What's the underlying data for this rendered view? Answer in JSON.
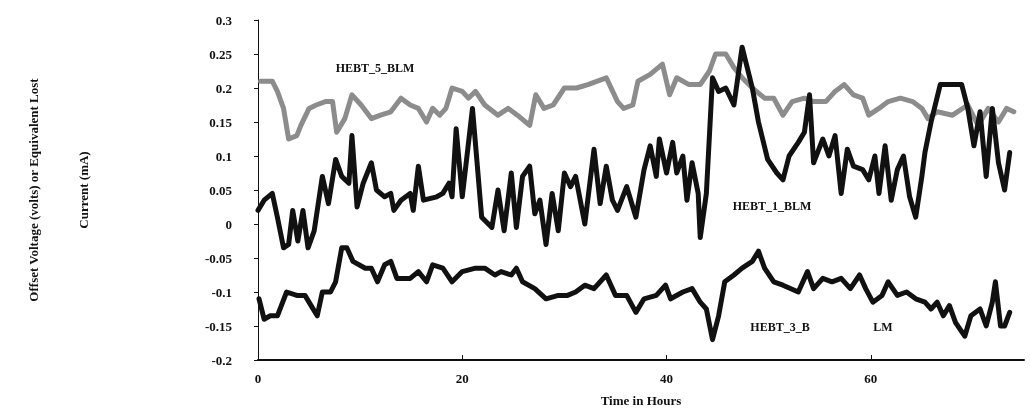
{
  "chart_data": {
    "type": "line",
    "xlabel": "Time in Hours",
    "ylabel": "Offset Voltage (volts) or Equivalent Lost Current (mA)",
    "xlim": [
      0,
      75
    ],
    "xticks": [
      0,
      20,
      40,
      60
    ],
    "ylim": [
      -0.2,
      0.3
    ],
    "yticks": [
      0.3,
      0.25,
      0.2,
      0.15,
      0.1,
      0.05,
      0,
      -0.05,
      -0.1,
      -0.15,
      -0.2
    ],
    "grid": false,
    "marker": "none",
    "line_style": "solid",
    "series": [
      {
        "color": "#8c8c8c",
        "x": [
          0.25,
          1.4,
          1.9,
          2.5,
          3.0,
          3.8,
          4.2,
          5.0,
          5.7,
          6.6,
          7.3,
          7.7,
          8.5,
          9.2,
          10.1,
          11.1,
          12.0,
          13.0,
          14.0,
          14.9,
          15.7,
          16.5,
          17.1,
          17.8,
          18.4,
          19.0,
          20.0,
          20.6,
          21.3,
          22.2,
          23.5,
          24.5,
          25.4,
          26.6,
          27.2,
          28.0,
          28.9,
          30.0,
          31.2,
          32.3,
          34.1,
          35.2,
          35.8,
          36.7,
          37.2,
          38.4,
          39.6,
          40.3,
          41.0,
          42.2,
          43.3,
          44.2,
          44.8,
          45.8,
          46.6,
          47.4,
          48.4,
          49.6,
          50.5,
          51.4,
          52.3,
          53.5,
          54.4,
          55.6,
          56.5,
          57.4,
          58.3,
          59.2,
          59.8,
          60.8,
          61.7,
          62.9,
          64.1,
          65.0,
          65.6,
          66.5,
          68.0,
          69.5,
          70.5,
          71.5,
          72.5,
          73.3,
          74.0
        ],
        "values": [
          0.21,
          0.21,
          0.195,
          0.17,
          0.125,
          0.13,
          0.145,
          0.17,
          0.175,
          0.18,
          0.18,
          0.135,
          0.155,
          0.19,
          0.175,
          0.155,
          0.16,
          0.165,
          0.185,
          0.175,
          0.17,
          0.15,
          0.17,
          0.16,
          0.17,
          0.2,
          0.195,
          0.185,
          0.195,
          0.175,
          0.16,
          0.17,
          0.16,
          0.145,
          0.19,
          0.17,
          0.175,
          0.2,
          0.2,
          0.205,
          0.215,
          0.18,
          0.17,
          0.175,
          0.21,
          0.22,
          0.235,
          0.19,
          0.215,
          0.205,
          0.205,
          0.225,
          0.25,
          0.25,
          0.23,
          0.215,
          0.2,
          0.185,
          0.185,
          0.16,
          0.18,
          0.185,
          0.18,
          0.18,
          0.195,
          0.205,
          0.19,
          0.185,
          0.16,
          0.17,
          0.18,
          0.185,
          0.18,
          0.17,
          0.155,
          0.165,
          0.16,
          0.175,
          0.145,
          0.17,
          0.15,
          0.17,
          0.165
        ]
      },
      {
        "color": "#111111",
        "x": [
          0,
          0.6,
          1.4,
          1.9,
          2.5,
          3.0,
          3.4,
          3.9,
          4.4,
          4.9,
          5.5,
          6.3,
          6.9,
          7.6,
          8.2,
          8.9,
          9.2,
          9.7,
          10.3,
          11.1,
          11.6,
          12.4,
          13.0,
          13.3,
          14.0,
          14.9,
          15.2,
          15.7,
          16.2,
          17.5,
          18.1,
          18.7,
          19.0,
          19.4,
          20.0,
          21.0,
          21.9,
          22.9,
          23.5,
          24.1,
          24.8,
          25.3,
          25.9,
          26.6,
          27.1,
          27.6,
          28.2,
          28.8,
          29.4,
          30.0,
          30.6,
          31.1,
          32.0,
          32.9,
          33.5,
          34.1,
          34.7,
          35.2,
          36.1,
          37.0,
          37.8,
          38.4,
          39.0,
          39.3,
          40.0,
          40.6,
          41.0,
          41.6,
          42.0,
          42.5,
          43.1,
          43.3,
          43.9,
          44.5,
          45.1,
          45.8,
          46.6,
          47.4,
          48.4,
          49.0,
          49.9,
          50.8,
          51.4,
          52.0,
          52.9,
          53.5,
          54.0,
          54.4,
          55.3,
          55.9,
          56.5,
          57.1,
          57.7,
          58.3,
          59.2,
          59.8,
          60.4,
          60.8,
          61.4,
          62.0,
          62.6,
          63.2,
          63.8,
          64.4,
          65.0,
          65.3,
          65.9,
          66.8,
          68.9,
          69.5,
          70.1,
          70.7,
          71.3,
          71.9,
          72.5,
          73.1,
          73.6
        ],
        "values": [
          0.02,
          0.035,
          0.045,
          0.01,
          -0.035,
          -0.03,
          0.02,
          -0.025,
          0.02,
          -0.035,
          -0.01,
          0.07,
          0.03,
          0.095,
          0.07,
          0.06,
          0.13,
          0.025,
          0.06,
          0.09,
          0.05,
          0.04,
          0.045,
          0.02,
          0.035,
          0.045,
          0.02,
          0.085,
          0.035,
          0.04,
          0.045,
          0.06,
          0.04,
          0.14,
          0.04,
          0.17,
          0.01,
          -0.005,
          0.05,
          -0.01,
          0.075,
          -0.005,
          0.07,
          0.085,
          0.015,
          0.035,
          -0.03,
          0.045,
          -0.01,
          0.075,
          0.055,
          0.07,
          0,
          0.11,
          0.03,
          0.085,
          0.035,
          0.02,
          0.055,
          0.01,
          0.08,
          0.115,
          0.07,
          0.125,
          0.075,
          0.12,
          0.075,
          0.1,
          0.035,
          0.09,
          0.045,
          -0.02,
          0.045,
          0.215,
          0.195,
          0.2,
          0.175,
          0.26,
          0.2,
          0.15,
          0.095,
          0.075,
          0.065,
          0.1,
          0.12,
          0.135,
          0.19,
          0.09,
          0.125,
          0.1,
          0.13,
          0.045,
          0.11,
          0.085,
          0.08,
          0.065,
          0.1,
          0.045,
          0.115,
          0.035,
          0.08,
          0.1,
          0.04,
          0.01,
          0.07,
          0.105,
          0.15,
          0.205,
          0.205,
          0.17,
          0.115,
          0.165,
          0.07,
          0.17,
          0.09,
          0.05,
          0.105
        ]
      },
      {
        "color": "#111111",
        "x": [
          0.1,
          0.6,
          1.2,
          1.9,
          2.8,
          3.8,
          4.6,
          5.2,
          5.8,
          6.3,
          7.1,
          7.6,
          8.2,
          8.7,
          9.3,
          10.5,
          11.1,
          11.7,
          12.4,
          13.0,
          13.6,
          14.9,
          15.7,
          16.5,
          17.1,
          18.1,
          19.0,
          20.0,
          21.3,
          22.2,
          23.2,
          23.8,
          24.8,
          25.3,
          25.9,
          27.1,
          28.2,
          29.4,
          30.3,
          31.1,
          32.0,
          32.9,
          34.1,
          35.0,
          36.1,
          37.0,
          37.8,
          39.0,
          39.9,
          40.4,
          41.6,
          42.5,
          43.3,
          43.9,
          44.5,
          45.1,
          45.7,
          46.6,
          47.4,
          48.4,
          49.0,
          49.6,
          50.5,
          51.4,
          52.9,
          53.8,
          54.4,
          55.3,
          56.2,
          57.1,
          58.0,
          58.9,
          59.5,
          60.2,
          61.1,
          61.7,
          62.6,
          63.5,
          64.4,
          65.3,
          65.9,
          66.5,
          67.1,
          67.7,
          68.3,
          69.2,
          69.8,
          70.7,
          71.3,
          71.9,
          72.2,
          72.7,
          73.1,
          73.6
        ],
        "values": [
          -0.11,
          -0.14,
          -0.135,
          -0.135,
          -0.1,
          -0.105,
          -0.105,
          -0.12,
          -0.135,
          -0.1,
          -0.1,
          -0.085,
          -0.035,
          -0.035,
          -0.055,
          -0.065,
          -0.065,
          -0.085,
          -0.06,
          -0.055,
          -0.08,
          -0.08,
          -0.07,
          -0.085,
          -0.06,
          -0.065,
          -0.085,
          -0.07,
          -0.065,
          -0.065,
          -0.075,
          -0.07,
          -0.075,
          -0.065,
          -0.085,
          -0.095,
          -0.11,
          -0.105,
          -0.105,
          -0.1,
          -0.09,
          -0.095,
          -0.075,
          -0.105,
          -0.105,
          -0.13,
          -0.11,
          -0.105,
          -0.09,
          -0.11,
          -0.1,
          -0.095,
          -0.115,
          -0.125,
          -0.17,
          -0.135,
          -0.085,
          -0.075,
          -0.065,
          -0.055,
          -0.04,
          -0.065,
          -0.085,
          -0.09,
          -0.1,
          -0.07,
          -0.095,
          -0.08,
          -0.085,
          -0.08,
          -0.095,
          -0.075,
          -0.095,
          -0.115,
          -0.105,
          -0.085,
          -0.105,
          -0.1,
          -0.11,
          -0.115,
          -0.125,
          -0.115,
          -0.135,
          -0.12,
          -0.145,
          -0.165,
          -0.135,
          -0.125,
          -0.15,
          -0.115,
          -0.085,
          -0.15,
          -0.15,
          -0.13
        ]
      }
    ],
    "annotations": [
      "HEBT_5_BLM",
      "HEBT_1_BLM",
      "HEBT_3_B",
      "LM"
    ]
  }
}
